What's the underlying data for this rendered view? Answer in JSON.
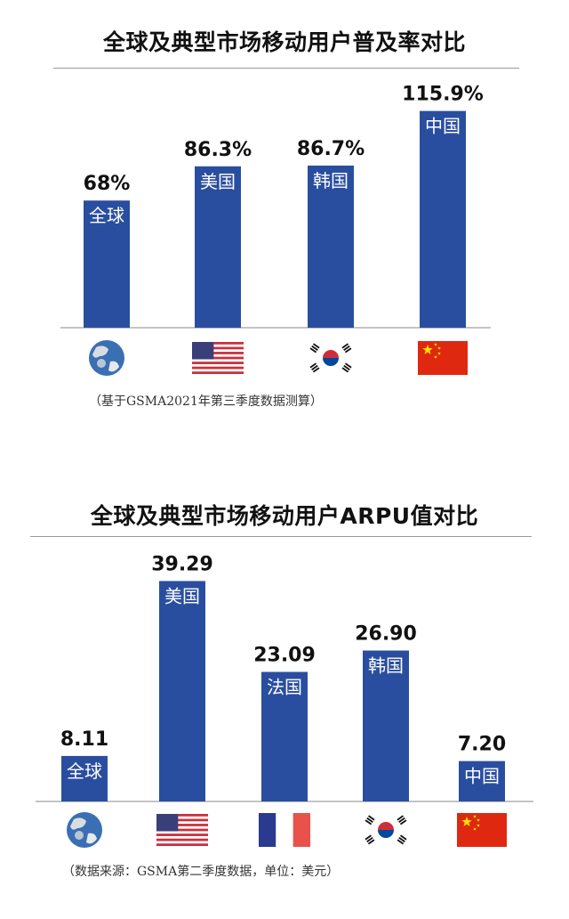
{
  "colors": {
    "bar": "#2a4e9f",
    "axis": "#888888"
  },
  "chart_data": [
    {
      "type": "bar",
      "title": "全球及典型市场移动用户普及率对比",
      "categories": [
        "全球",
        "美国",
        "韩国",
        "中国"
      ],
      "values": [
        68,
        86.3,
        86.7,
        115.9
      ],
      "value_labels": [
        "68%",
        "86.3%",
        "86.7%",
        "115.9%"
      ],
      "icons": [
        "earth-icon",
        "usa-flag-icon",
        "korea-flag-icon",
        "china-flag-icon"
      ],
      "note": "（基于GSMA2021年第三季度数据测算）",
      "grid": false,
      "legend": "none"
    },
    {
      "type": "bar",
      "title": "全球及典型市场移动用户ARPU值对比",
      "categories": [
        "全球",
        "美国",
        "法国",
        "韩国",
        "中国"
      ],
      "values": [
        8.11,
        39.29,
        23.09,
        26.9,
        7.2
      ],
      "value_labels": [
        "8.11",
        "39.29",
        "23.09",
        "26.90",
        "7.20"
      ],
      "icons": [
        "earth-icon",
        "usa-flag-icon",
        "france-flag-icon",
        "korea-flag-icon",
        "china-flag-icon"
      ],
      "note": "（数据来源：GSMA第二季度数据，单位：美元）",
      "grid": false,
      "legend": "none"
    }
  ]
}
